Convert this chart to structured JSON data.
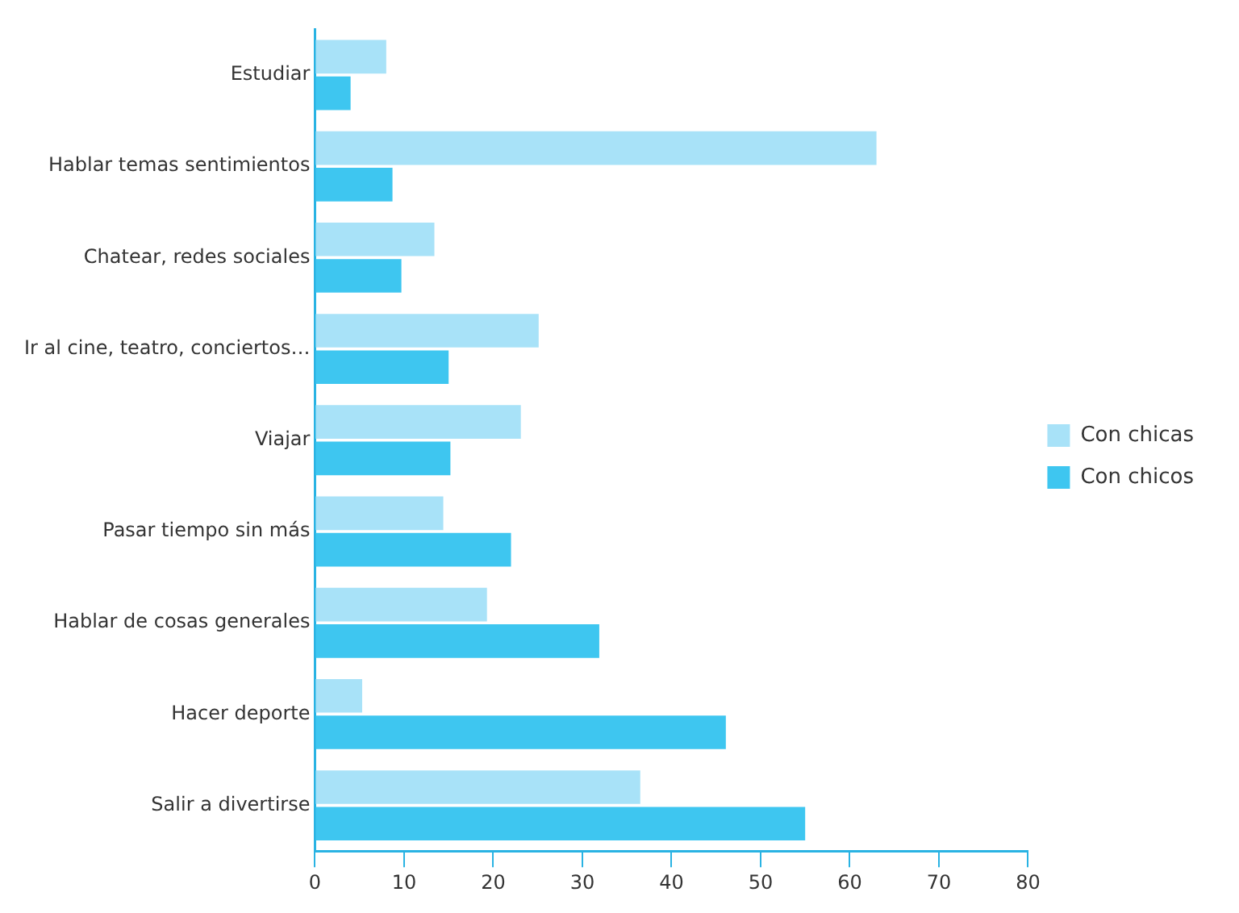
{
  "chart_data": {
    "type": "bar",
    "orientation": "horizontal",
    "categories": [
      "Estudiar",
      "Hablar temas sentimientos",
      "Chatear, redes sociales",
      "Ir al cine, teatro, conciertos…",
      "Viajar",
      "Pasar tiempo sin más",
      "Hablar de cosas generales",
      "Hacer deporte",
      "Salir a divertirse"
    ],
    "series": [
      {
        "name": "Con chicas",
        "color": "#a8e2f8",
        "values": [
          8,
          63,
          13.4,
          25.1,
          23.1,
          14.4,
          19.3,
          5.3,
          36.5
        ]
      },
      {
        "name": "Con chicos",
        "color": "#3ec6f0",
        "values": [
          4,
          8.7,
          9.7,
          15,
          15.2,
          22,
          31.9,
          46.1,
          55
        ]
      }
    ],
    "xlim": [
      0,
      80
    ],
    "xticks": [
      0,
      10,
      20,
      30,
      40,
      50,
      60,
      70,
      80
    ],
    "grid": false,
    "legend": "right"
  }
}
